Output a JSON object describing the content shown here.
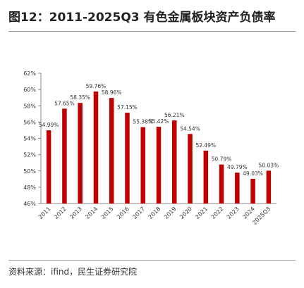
{
  "title": "图12：2011-2025Q3 有色金属板块资产负债率",
  "source": "资料来源：ifind，民生证券研究院",
  "chart_data": {
    "type": "bar",
    "title": "",
    "xlabel": "",
    "ylabel": "",
    "categories": [
      "2011",
      "2012",
      "2013",
      "2014",
      "2015",
      "2016",
      "2017",
      "2018",
      "2019",
      "2020",
      "2021",
      "2022",
      "2023",
      "2024",
      "2025Q3"
    ],
    "values": [
      54.99,
      57.65,
      58.35,
      59.76,
      58.96,
      57.15,
      55.38,
      55.42,
      56.21,
      54.54,
      52.49,
      50.79,
      49.79,
      49.03,
      50.03
    ],
    "data_labels": [
      "54.99%",
      "57.65%",
      "58.35%",
      "59.76%",
      "58.96%",
      "57.15%",
      "55.38%",
      "55.42%",
      "56.21%",
      "54.54%",
      "52.49%",
      "50.79%",
      "49.79%",
      "49.03%",
      "50.03%"
    ],
    "ylim": [
      46,
      62
    ],
    "yticks": [
      46,
      48,
      50,
      52,
      54,
      56,
      58,
      60,
      62
    ],
    "ytick_labels": [
      "46%",
      "48%",
      "50%",
      "52%",
      "54%",
      "56%",
      "58%",
      "60%",
      "62%"
    ],
    "bar_color": "#c00000",
    "grid": false,
    "legend": "none"
  }
}
